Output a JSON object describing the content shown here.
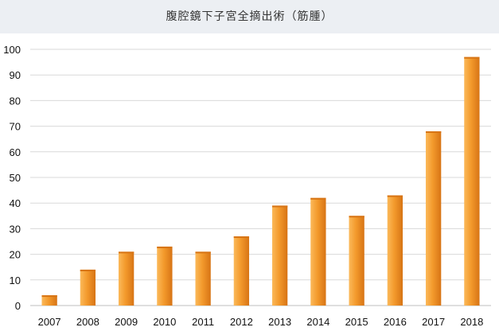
{
  "chart_data": {
    "type": "bar",
    "title": "腹腔鏡下子宮全摘出術（筋腫）",
    "xlabel": "",
    "ylabel": "",
    "categories": [
      "2007",
      "2008",
      "2009",
      "2010",
      "2011",
      "2012",
      "2013",
      "2014",
      "2015",
      "2016",
      "2017",
      "2018"
    ],
    "values": [
      4,
      14,
      21,
      23,
      21,
      27,
      39,
      42,
      35,
      43,
      68,
      97
    ],
    "ylim": [
      0,
      100
    ],
    "yticks": [
      0,
      10,
      20,
      30,
      40,
      50,
      60,
      70,
      80,
      90,
      100
    ],
    "grid": true,
    "legend": "none",
    "colors": {
      "bar_light": "#fbb95a",
      "bar_mid": "#f39a2c",
      "bar_dark": "#d77415",
      "grid": "#d9d9d9"
    }
  }
}
